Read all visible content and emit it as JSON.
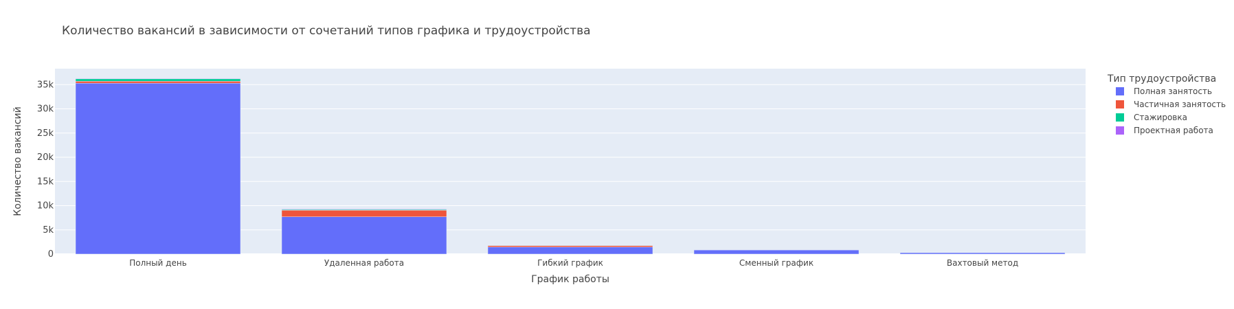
{
  "chart_data": {
    "type": "bar",
    "stacked": true,
    "title": "Количество вакансий в зависимости от сочетаний типов графика и трудоустройства",
    "xlabel": "График работы",
    "ylabel": "Количество вакансий",
    "categories": [
      "Полный день",
      "Удаленная работа",
      "Гибкий график",
      "Сменный график",
      "Вахтовый метод"
    ],
    "ylim": [
      0,
      38300
    ],
    "yticks": [
      0,
      5000,
      10000,
      15000,
      20000,
      25000,
      30000,
      35000
    ],
    "ytick_labels": [
      "0",
      "5k",
      "10k",
      "15k",
      "20k",
      "25k",
      "30k",
      "35k"
    ],
    "grid": true,
    "legend": {
      "title": "Тип трудоустройства",
      "position": "right"
    },
    "series": [
      {
        "name": "Полная занятость",
        "color": "#636efa",
        "values": [
          35300,
          7700,
          1450,
          850,
          300
        ]
      },
      {
        "name": "Частичная занятость",
        "color": "#ef553b",
        "values": [
          400,
          1350,
          300,
          50,
          10
        ]
      },
      {
        "name": "Стажировка",
        "color": "#00cc96",
        "values": [
          500,
          150,
          80,
          10,
          5
        ]
      },
      {
        "name": "Проектная работа",
        "color": "#ab63fa",
        "values": [
          100,
          100,
          50,
          10,
          5
        ]
      }
    ]
  }
}
